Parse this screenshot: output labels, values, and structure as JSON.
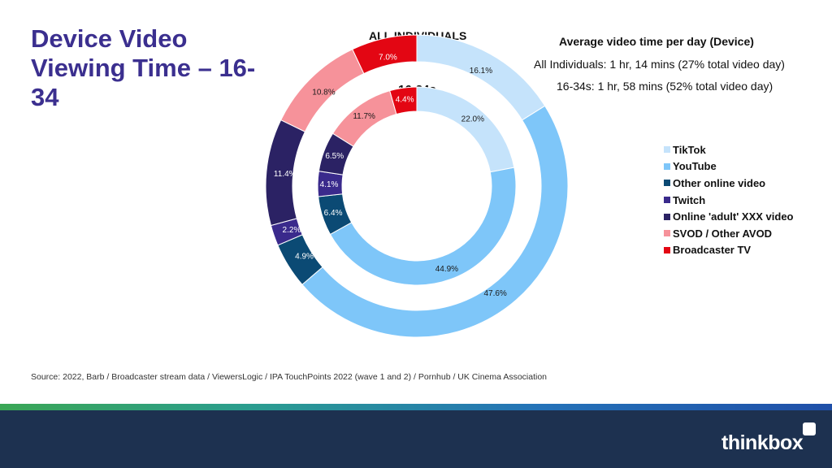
{
  "slide": {
    "title": "Device Video Viewing Time – 16-34",
    "source": "Source: 2022, Barb / Broadcaster stream data / ViewersLogic / IPA TouchPoints 2022 (wave 1 and 2) / Pornhub / UK Cinema Association",
    "logo": "thinkbox"
  },
  "info": {
    "title": "Average video time per day (Device)",
    "line1": "All Individuals: 1 hr, 14 mins (27% total video day)",
    "line2": "16-34s: 1 hr, 58 mins (52% total video day)"
  },
  "chart_data": {
    "type": "pie",
    "variant": "nested-donut",
    "title": "",
    "legend_position": "right",
    "categories": [
      "TikTok",
      "YouTube",
      "Other online video",
      "Twitch",
      "Online 'adult' XXX video",
      "SVOD / Other AVOD",
      "Broadcaster TV"
    ],
    "colors": [
      "#c5e3fb",
      "#7ec6f9",
      "#0b4a74",
      "#3a2a8c",
      "#2b2264",
      "#f6929a",
      "#e30613"
    ],
    "series": [
      {
        "name": "ALL INDIVIDUALS",
        "ring": "outer",
        "values": [
          16.1,
          47.6,
          4.9,
          2.2,
          11.4,
          10.8,
          7.0
        ],
        "labels": [
          "16.1%",
          "47.6%",
          "4.9%",
          "2.2%",
          "11.4%",
          "10.8%",
          "7.0%"
        ]
      },
      {
        "name": "16-34s",
        "ring": "inner",
        "values": [
          22.0,
          44.9,
          6.4,
          4.1,
          6.5,
          11.7,
          4.4
        ],
        "labels": [
          "22.0%",
          "44.9%",
          "6.4%",
          "4.1%",
          "6.5%",
          "11.7%",
          "4.4%"
        ]
      }
    ]
  }
}
